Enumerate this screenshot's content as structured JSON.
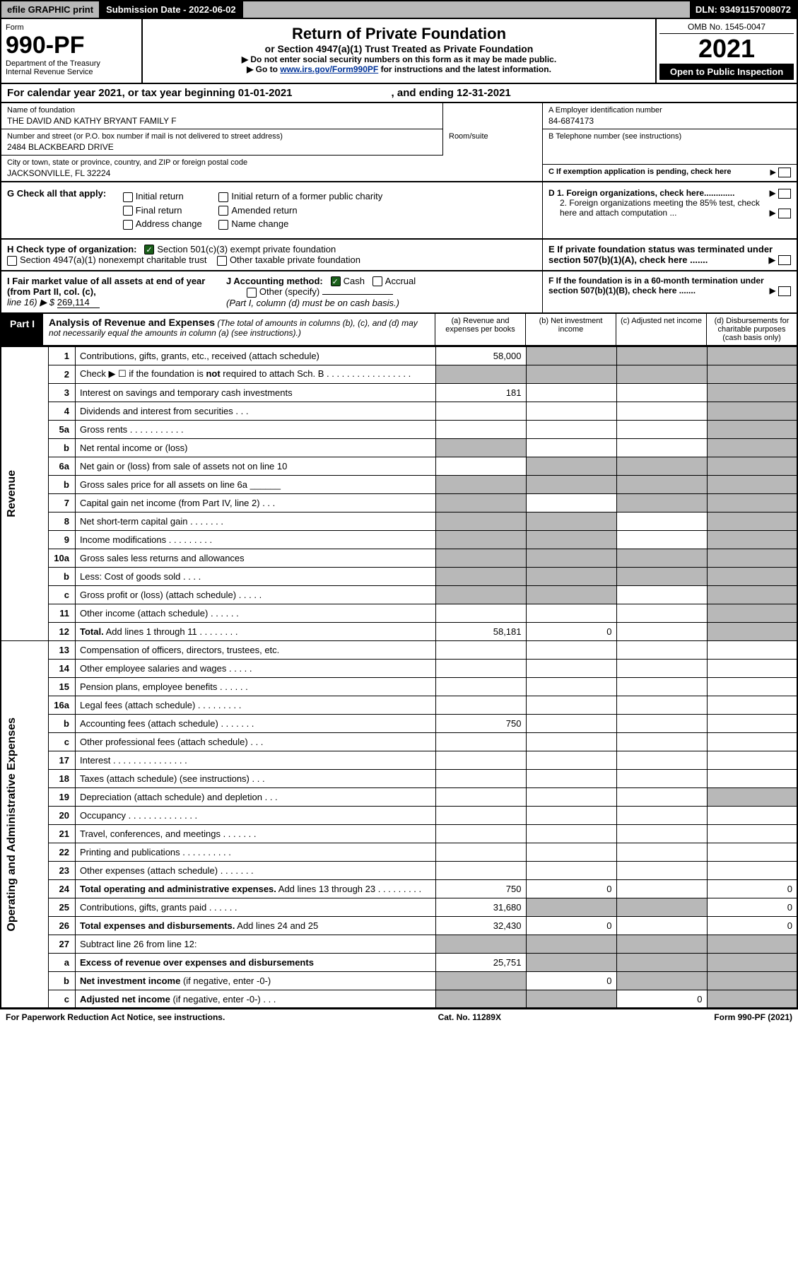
{
  "top": {
    "efile": "efile GRAPHIC print",
    "subLabel": "Submission Date - ",
    "subDate": "2022-06-02",
    "dln": "DLN: 93491157008072"
  },
  "header": {
    "formWord": "Form",
    "formNum": "990-PF",
    "dept": "Department of the Treasury",
    "irs": "Internal Revenue Service",
    "title": "Return of Private Foundation",
    "subtitle": "or Section 4947(a)(1) Trust Treated as Private Foundation",
    "note1": "▶ Do not enter social security numbers on this form as it may be made public.",
    "note2a": "▶ Go to ",
    "note2link": "www.irs.gov/Form990PF",
    "note2b": " for instructions and the latest information.",
    "omb": "OMB No. 1545-0047",
    "year": "2021",
    "open": "Open to Public Inspection"
  },
  "calendar": {
    "text": "For calendar year 2021, or tax year beginning 01-01-2021",
    "ending": ", and ending 12-31-2021"
  },
  "id": {
    "nameLabel": "Name of foundation",
    "name": "THE DAVID AND KATHY BRYANT FAMILY F",
    "addrLabel": "Number and street (or P.O. box number if mail is not delivered to street address)",
    "addr": "2484 BLACKBEARD DRIVE",
    "roomLabel": "Room/suite",
    "cityLabel": "City or town, state or province, country, and ZIP or foreign postal code",
    "city": "JACKSONVILLE, FL  32224",
    "einLabel": "A Employer identification number",
    "ein": "84-6874173",
    "telLabel": "B Telephone number (see instructions)",
    "cLabel": "C If exemption application is pending, check here",
    "d1": "D 1. Foreign organizations, check here.............",
    "d2": "2. Foreign organizations meeting the 85% test, check here and attach computation ...",
    "eLabel": "E  If private foundation status was terminated under section 507(b)(1)(A), check here .......",
    "fLabel": "F  If the foundation is in a 60-month termination under section 507(b)(1)(B), check here ......."
  },
  "g": {
    "label": "G Check all that apply:",
    "opts": [
      "Initial return",
      "Final return",
      "Address change",
      "Initial return of a former public charity",
      "Amended return",
      "Name change"
    ]
  },
  "h": {
    "label": "H Check type of organization:",
    "opt1": "Section 501(c)(3) exempt private foundation",
    "opt2": "Section 4947(a)(1) nonexempt charitable trust",
    "opt3": "Other taxable private foundation"
  },
  "i": {
    "label": "I Fair market value of all assets at end of year (from Part II, col. (c),",
    "line": "line 16) ▶ $",
    "val": "269,114"
  },
  "j": {
    "label": "J Accounting method:",
    "cash": "Cash",
    "accrual": "Accrual",
    "other": "Other (specify)",
    "note": "(Part I, column (d) must be on cash basis.)"
  },
  "part1": {
    "label": "Part I",
    "title": "Analysis of Revenue and Expenses",
    "desc": " (The total of amounts in columns (b), (c), and (d) may not necessarily equal the amounts in column (a) (see instructions).)",
    "colA": "(a)   Revenue and expenses per books",
    "colB": "(b)   Net investment income",
    "colC": "(c)   Adjusted net income",
    "colD": "(d)   Disbursements for charitable purposes (cash basis only)"
  },
  "sideLabels": {
    "rev": "Revenue",
    "exp": "Operating and Administrative Expenses"
  },
  "rows": [
    {
      "n": "1",
      "t": "Contributions, gifts, grants, etc., received (attach schedule)",
      "a": "58,000",
      "sb": 1,
      "sc": 1,
      "sd": 1
    },
    {
      "n": "2",
      "t": "Check ▶ ☐ if the foundation is <b>not</b> required to attach Sch. B  .  .  .  .  .  .  .  .  .  .  .  .  .  .  .  .  .",
      "sa": 1,
      "sb": 1,
      "sc": 1,
      "sd": 1
    },
    {
      "n": "3",
      "t": "Interest on savings and temporary cash investments",
      "a": "181",
      "sd": 1
    },
    {
      "n": "4",
      "t": "Dividends and interest from securities   .   .   .",
      "sd": 1
    },
    {
      "n": "5a",
      "t": "Gross rents   .   .   .   .   .   .   .   .   .   .   .",
      "sd": 1
    },
    {
      "n": "b",
      "t": "Net rental income or (loss) ",
      "sa": 1,
      "sd": 1
    },
    {
      "n": "6a",
      "t": "Net gain or (loss) from sale of assets not on line 10",
      "sb": 1,
      "sc": 1,
      "sd": 1
    },
    {
      "n": "b",
      "t": "Gross sales price for all assets on line 6a ______",
      "sa": 1,
      "sb": 1,
      "sc": 1,
      "sd": 1
    },
    {
      "n": "7",
      "t": "Capital gain net income (from Part IV, line 2)    .    .    .",
      "sa": 1,
      "sc": 1,
      "sd": 1
    },
    {
      "n": "8",
      "t": "Net short-term capital gain   .   .   .   .   .   .   .",
      "sa": 1,
      "sb": 1,
      "sd": 1
    },
    {
      "n": "9",
      "t": "Income modifications   .   .   .   .   .   .   .   .   .",
      "sa": 1,
      "sb": 1,
      "sd": 1
    },
    {
      "n": "10a",
      "t": "Gross sales less returns and allowances",
      "sa": 1,
      "sb": 1,
      "sc": 1,
      "sd": 1
    },
    {
      "n": "b",
      "t": "Less: Cost of goods sold   .   .   .   .",
      "sa": 1,
      "sb": 1,
      "sc": 1,
      "sd": 1
    },
    {
      "n": "c",
      "t": "Gross profit or (loss) (attach schedule)   .   .   .   .   .",
      "sa": 1,
      "sb": 1,
      "sd": 1
    },
    {
      "n": "11",
      "t": "Other income (attach schedule)   .   .   .   .   .   .",
      "sd": 1
    },
    {
      "n": "12",
      "t": "<b>Total.</b> Add lines 1 through 11   .   .   .   .   .   .   .   .",
      "a": "58,181",
      "b": "0",
      "sd": 1
    },
    {
      "n": "13",
      "t": "Compensation of officers, directors, trustees, etc."
    },
    {
      "n": "14",
      "t": "Other employee salaries and wages   .   .   .   .   ."
    },
    {
      "n": "15",
      "t": "Pension plans, employee benefits   .   .   .   .   .   ."
    },
    {
      "n": "16a",
      "t": "Legal fees (attach schedule)  .  .  .  .  .  .  .  .  ."
    },
    {
      "n": "b",
      "t": "Accounting fees (attach schedule)  .  .  .  .  .  .  .",
      "a": "750"
    },
    {
      "n": "c",
      "t": "Other professional fees (attach schedule)   .   .   ."
    },
    {
      "n": "17",
      "t": "Interest  .  .  .  .  .  .  .  .  .  .  .  .  .  .  ."
    },
    {
      "n": "18",
      "t": "Taxes (attach schedule) (see instructions)   .   .   ."
    },
    {
      "n": "19",
      "t": "Depreciation (attach schedule) and depletion   .   .   .",
      "sd": 1
    },
    {
      "n": "20",
      "t": "Occupancy  .  .  .  .  .  .  .  .  .  .  .  .  .  ."
    },
    {
      "n": "21",
      "t": "Travel, conferences, and meetings  .  .  .  .  .  .  ."
    },
    {
      "n": "22",
      "t": "Printing and publications  .  .  .  .  .  .  .  .  .  ."
    },
    {
      "n": "23",
      "t": "Other expenses (attach schedule)  .  .  .  .  .  .  ."
    },
    {
      "n": "24",
      "t": "<b>Total operating and administrative expenses.</b> Add lines 13 through 23   .   .   .   .   .   .   .   .   .",
      "a": "750",
      "b": "0",
      "d": "0"
    },
    {
      "n": "25",
      "t": "Contributions, gifts, grants paid   .   .   .   .   .   .",
      "a": "31,680",
      "sb": 1,
      "sc": 1,
      "d": "0"
    },
    {
      "n": "26",
      "t": "<b>Total expenses and disbursements.</b> Add lines 24 and 25",
      "a": "32,430",
      "b": "0",
      "d": "0"
    },
    {
      "n": "27",
      "t": "Subtract line 26 from line 12:",
      "sa": 1,
      "sb": 1,
      "sc": 1,
      "sd": 1
    },
    {
      "n": "a",
      "t": "<b>Excess of revenue over expenses and disbursements</b>",
      "a": "25,751",
      "sb": 1,
      "sc": 1,
      "sd": 1
    },
    {
      "n": "b",
      "t": "<b>Net investment income</b> (if negative, enter -0-)",
      "sa": 1,
      "b": "0",
      "sc": 1,
      "sd": 1
    },
    {
      "n": "c",
      "t": "<b>Adjusted net income</b> (if negative, enter -0-)   .   .   .",
      "sa": 1,
      "sb": 1,
      "c": "0",
      "sd": 1
    }
  ],
  "footer": {
    "left": "For Paperwork Reduction Act Notice, see instructions.",
    "mid": "Cat. No. 11289X",
    "right": "Form 990-PF (2021)"
  }
}
